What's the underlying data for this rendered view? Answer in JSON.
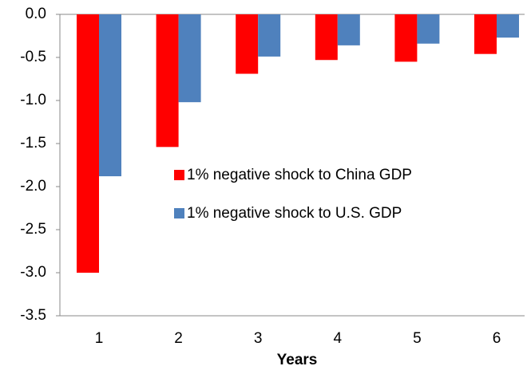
{
  "chart_data": {
    "type": "bar",
    "x_label": "Years",
    "categories": [
      "1",
      "2",
      "3",
      "4",
      "5",
      "6"
    ],
    "series": [
      {
        "name": "1% negative shock to China GDP",
        "color": "#ff0000",
        "values": [
          -3.0,
          -1.54,
          -0.69,
          -0.53,
          -0.55,
          -0.46
        ]
      },
      {
        "name": "1% negative shock to U.S. GDP",
        "color": "#4f81bd",
        "values": [
          -1.88,
          -1.02,
          -0.49,
          -0.36,
          -0.34,
          -0.27
        ]
      }
    ],
    "ylim": [
      -3.5,
      0
    ],
    "yticks": [
      {
        "value": 0,
        "label": "0.0"
      },
      -0.5,
      {
        "value": -1,
        "label": "-1.0"
      },
      -1.5,
      {
        "value": -2,
        "label": "-2.0"
      },
      -2.5,
      {
        "value": -3,
        "label": "-3.0"
      },
      -3.5
    ]
  }
}
